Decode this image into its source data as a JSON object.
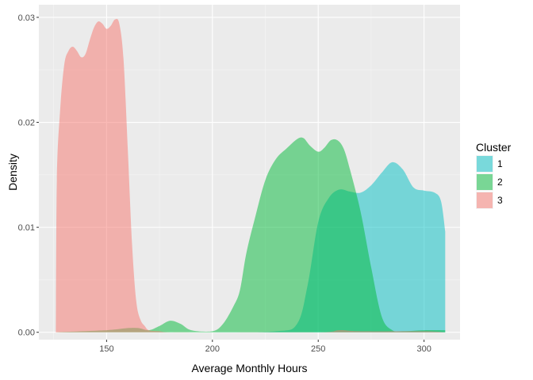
{
  "chart_data": {
    "type": "area",
    "subtype": "density",
    "title": "",
    "xlabel": "Average Monthly Hours",
    "ylabel": "Density",
    "xlim": [
      118,
      317
    ],
    "ylim": [
      -0.0007,
      0.0312
    ],
    "x_ticks": [
      150,
      200,
      250,
      300
    ],
    "x_tick_labels": [
      "150",
      "200",
      "250",
      "300"
    ],
    "y_ticks": [
      0,
      0.01,
      0.02,
      0.03
    ],
    "y_tick_labels": [
      "0.00",
      "0.01",
      "0.02",
      "0.03"
    ],
    "grid": true,
    "legend": {
      "title": "Cluster",
      "position": "right"
    },
    "series": [
      {
        "name": "1",
        "color": "#00BFC4",
        "x": [
          126,
          200,
          230,
          240,
          245,
          250,
          255,
          260,
          265,
          270,
          275,
          280,
          285,
          290,
          295,
          300,
          305,
          308,
          310
        ],
        "y": [
          0,
          0,
          0.0001,
          0.0008,
          0.0045,
          0.0105,
          0.0128,
          0.0136,
          0.0134,
          0.0133,
          0.014,
          0.0152,
          0.0162,
          0.0155,
          0.0138,
          0.0135,
          0.0133,
          0.0125,
          0.0096
        ]
      },
      {
        "name": "2",
        "color": "#00BA38",
        "x": [
          126,
          150,
          160,
          165,
          170,
          175,
          180,
          185,
          190,
          200,
          205,
          210,
          213,
          216,
          220,
          225,
          230,
          235,
          240,
          243,
          246,
          250,
          253,
          256,
          259,
          262,
          265,
          270,
          275,
          280,
          285,
          290,
          300,
          310
        ],
        "y": [
          0,
          0.0002,
          0.0004,
          0.0004,
          0.0002,
          0.0006,
          0.0011,
          0.0008,
          0.0002,
          0.0001,
          0.0008,
          0.0025,
          0.004,
          0.0075,
          0.0108,
          0.0145,
          0.0165,
          0.0175,
          0.0184,
          0.0185,
          0.0178,
          0.0172,
          0.0176,
          0.0183,
          0.0183,
          0.0175,
          0.0155,
          0.0115,
          0.0062,
          0.0015,
          0.0002,
          0.0001,
          0.0002,
          0.0002
        ]
      },
      {
        "name": "3",
        "color": "#F8766D",
        "x": [
          126,
          126.5,
          128,
          130,
          132,
          134,
          136,
          138,
          140,
          142,
          144,
          146,
          148,
          150,
          152,
          154,
          156,
          158,
          160,
          162,
          164,
          166,
          168,
          170,
          175,
          180,
          200,
          250,
          260,
          270,
          300,
          310
        ],
        "y": [
          0,
          0.0145,
          0.021,
          0.0255,
          0.0268,
          0.0272,
          0.0268,
          0.0262,
          0.0265,
          0.0278,
          0.029,
          0.0296,
          0.0294,
          0.0289,
          0.0292,
          0.0298,
          0.0294,
          0.026,
          0.0175,
          0.0085,
          0.003,
          0.0012,
          0.0006,
          0.0002,
          0.0001,
          0,
          0,
          0,
          0.0002,
          0.0001,
          0.0001,
          0
        ]
      }
    ]
  }
}
